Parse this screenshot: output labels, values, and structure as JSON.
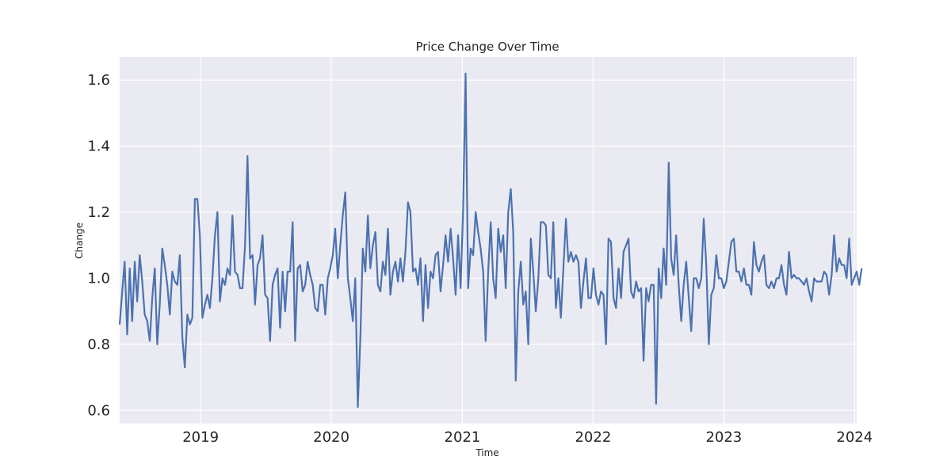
{
  "chart_data": {
    "type": "line",
    "title": "Price Change Over Time",
    "xlabel": "Time",
    "ylabel": "Change",
    "xlim": [
      "2018-05-20",
      "2024-01-07"
    ],
    "ylim": [
      0.56,
      1.67
    ],
    "x_ticks": [
      "2019",
      "2020",
      "2021",
      "2022",
      "2023",
      "2024"
    ],
    "y_ticks": [
      "0.6",
      "0.8",
      "1.0",
      "1.2",
      "1.4",
      "1.6"
    ],
    "grid": true,
    "colors": {
      "background": "#eaeaf2",
      "grid": "#ffffff",
      "line": "#4c72b0"
    },
    "series": [
      {
        "start": "2018-05-20",
        "frequency_days": 7,
        "values": [
          0.86,
          0.96,
          1.05,
          0.83,
          1.03,
          0.87,
          1.05,
          0.93,
          1.07,
          0.99,
          0.89,
          0.87,
          0.81,
          0.94,
          1.03,
          0.8,
          0.92,
          1.09,
          1.04,
          0.98,
          0.89,
          1.02,
          0.99,
          0.98,
          1.07,
          0.82,
          0.73,
          0.89,
          0.86,
          0.88,
          1.24,
          1.24,
          1.13,
          0.88,
          0.92,
          0.95,
          0.91,
          1.0,
          1.13,
          1.2,
          0.93,
          1.0,
          0.98,
          1.03,
          1.01,
          1.19,
          1.02,
          1.01,
          0.97,
          0.97,
          1.1,
          1.37,
          1.06,
          1.07,
          0.92,
          1.04,
          1.06,
          1.13,
          0.95,
          0.94,
          0.81,
          0.98,
          1.01,
          1.03,
          0.85,
          1.02,
          0.9,
          1.02,
          1.02,
          1.17,
          0.81,
          1.03,
          1.04,
          0.96,
          0.98,
          1.05,
          1.01,
          0.98,
          0.91,
          0.9,
          0.98,
          0.98,
          0.89,
          1.0,
          1.03,
          1.07,
          1.15,
          1.0,
          1.1,
          1.19,
          1.26,
          1.0,
          0.94,
          0.87,
          1.0,
          0.61,
          0.82,
          1.09,
          1.02,
          1.19,
          1.03,
          1.1,
          1.14,
          0.98,
          0.96,
          1.05,
          1.01,
          1.15,
          0.95,
          1.02,
          1.05,
          0.99,
          1.06,
          0.99,
          1.08,
          1.23,
          1.2,
          1.02,
          1.03,
          0.98,
          1.06,
          0.87,
          1.04,
          0.91,
          1.02,
          1.0,
          1.07,
          1.08,
          0.96,
          1.04,
          1.13,
          1.05,
          1.15,
          1.06,
          0.95,
          1.13,
          0.97,
          1.21,
          1.62,
          0.97,
          1.09,
          1.07,
          1.2,
          1.14,
          1.09,
          1.02,
          0.81,
          1.02,
          1.17,
          1.0,
          0.94,
          1.15,
          1.08,
          1.13,
          0.97,
          1.2,
          1.27,
          1.14,
          0.69,
          0.96,
          1.05,
          0.92,
          0.96,
          0.8,
          1.12,
          1.02,
          0.9,
          1.0,
          1.17,
          1.17,
          1.16,
          1.01,
          1.0,
          1.17,
          0.91,
          1.0,
          0.88,
          1.03,
          1.18,
          1.05,
          1.08,
          1.05,
          1.07,
          1.05,
          0.91,
          0.99,
          1.06,
          0.94,
          0.94,
          1.03,
          0.95,
          0.92,
          0.96,
          0.95,
          0.8,
          1.12,
          1.11,
          0.94,
          0.91,
          1.03,
          0.94,
          1.08,
          1.1,
          1.12,
          0.96,
          0.94,
          0.99,
          0.96,
          0.97,
          0.75,
          0.97,
          0.93,
          0.98,
          0.98,
          0.62,
          1.03,
          0.94,
          1.09,
          0.98,
          1.35,
          1.06,
          1.01,
          1.13,
          0.98,
          0.87,
          0.98,
          1.05,
          0.94,
          0.84,
          1.0,
          1.0,
          0.97,
          1.0,
          1.18,
          1.04,
          0.8,
          0.95,
          0.97,
          1.07,
          1.0,
          1.0,
          0.97,
          0.99,
          1.05,
          1.11,
          1.12,
          1.02,
          1.02,
          0.99,
          1.03,
          0.98,
          0.98,
          0.95,
          1.11,
          1.04,
          1.02,
          1.05,
          1.07,
          0.98,
          0.97,
          0.99,
          0.97,
          1.0,
          1.0,
          1.04,
          0.98,
          0.95,
          1.08,
          1.0,
          1.01,
          1.0,
          1.0,
          0.99,
          0.98,
          1.0,
          0.96,
          0.93,
          1.0,
          0.99,
          0.99,
          0.99,
          1.02,
          1.01,
          0.95,
          1.01,
          1.13,
          1.02,
          1.06,
          1.04,
          1.04,
          1.0,
          1.12,
          0.98,
          1.0,
          1.02,
          0.98,
          1.03
        ]
      }
    ]
  }
}
